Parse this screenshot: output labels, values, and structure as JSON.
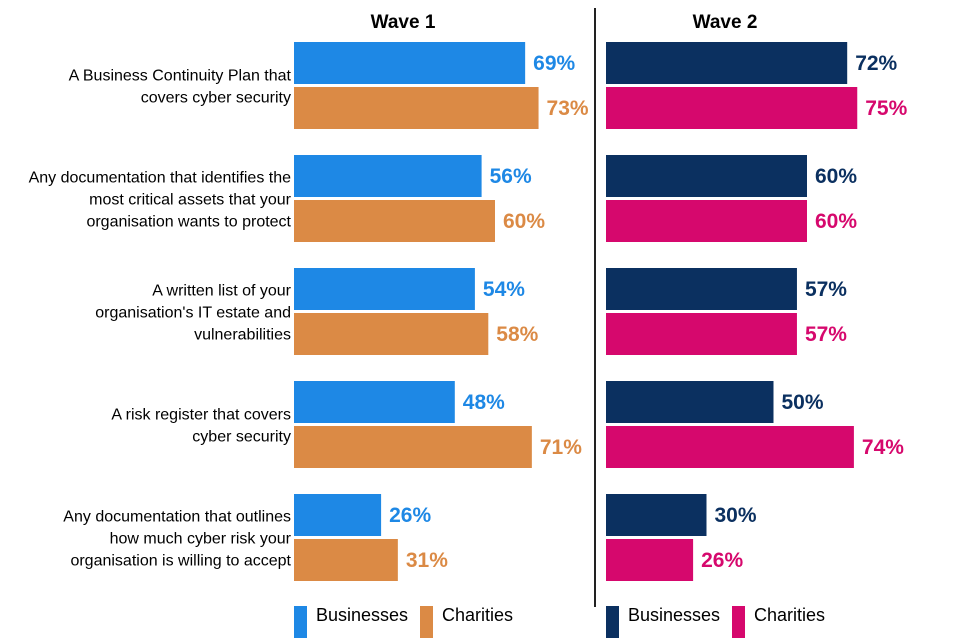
{
  "chart_data": [
    {
      "type": "bar",
      "orientation": "horizontal",
      "title": "Wave 1",
      "categories": [
        [
          "A Business Continuity Plan that",
          "covers cyber security"
        ],
        [
          "Any documentation that identifies the",
          "most critical assets that your",
          "organisation wants to protect"
        ],
        [
          "A written list of your",
          "organisation's IT estate and",
          "vulnerabilities"
        ],
        [
          "A risk register that covers",
          "cyber security"
        ],
        [
          "Any documentation that outlines",
          "how much cyber risk your",
          "organisation is willing to accept"
        ]
      ],
      "series": [
        {
          "name": "Businesses",
          "color": "#1E88E5",
          "values": [
            69,
            56,
            54,
            48,
            26
          ],
          "labels": [
            "69%",
            "56%",
            "54%",
            "48%",
            "26%"
          ]
        },
        {
          "name": "Charities",
          "color": "#DB8A45",
          "values": [
            73,
            60,
            58,
            71,
            31
          ],
          "labels": [
            "73%",
            "60%",
            "58%",
            "71%",
            "31%"
          ]
        }
      ],
      "xlim": [
        0,
        100
      ]
    },
    {
      "type": "bar",
      "orientation": "horizontal",
      "title": "Wave 2",
      "series": [
        {
          "name": "Businesses",
          "color": "#0B3060",
          "values": [
            72,
            60,
            57,
            50,
            30
          ],
          "labels": [
            "72%",
            "60%",
            "57%",
            "50%",
            "30%"
          ]
        },
        {
          "name": "Charities",
          "color": "#D6086D",
          "values": [
            75,
            60,
            57,
            74,
            26
          ],
          "labels": [
            "75%",
            "60%",
            "57%",
            "74%",
            "26%"
          ]
        }
      ],
      "xlim": [
        0,
        100
      ]
    }
  ]
}
